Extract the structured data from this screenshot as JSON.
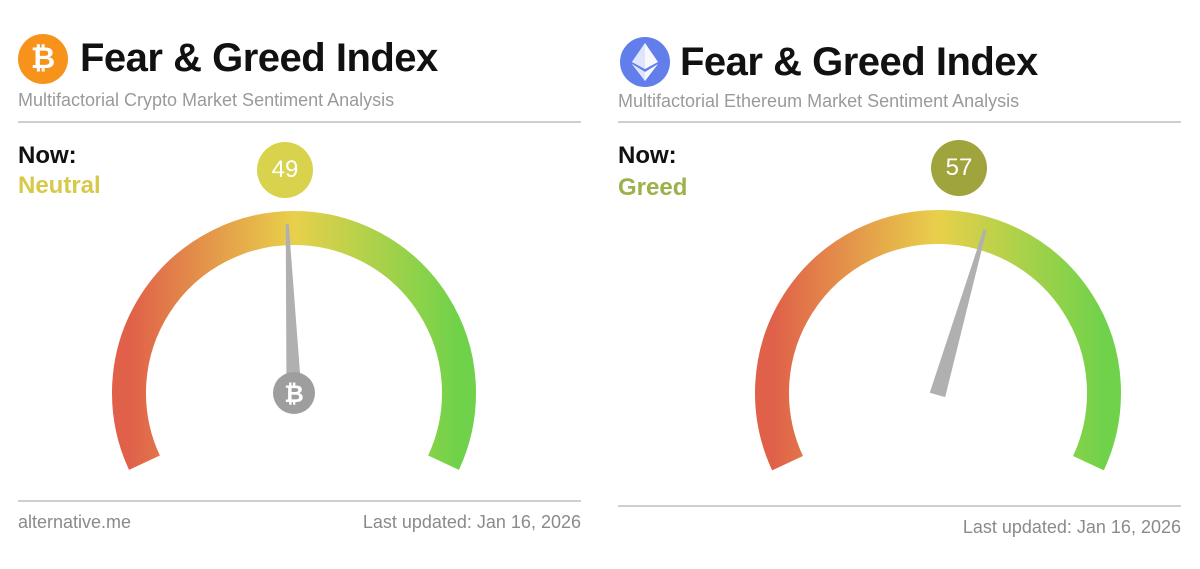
{
  "panels": {
    "btc": {
      "logo_icon": "bitcoin-icon",
      "logo_glyph": "₿",
      "title": "Fear & Greed Index",
      "subtitle": "Multifactorial Crypto Market Sentiment Analysis",
      "now_label": "Now:",
      "sentiment": "Neutral",
      "sentiment_color": "#d7c94a",
      "value": "49",
      "value_number": 49,
      "bubble_color": "#d9d24d",
      "hub_glyph": "₿",
      "footer_source": "alternative.me",
      "last_updated": "Last updated: Jan 16, 2026"
    },
    "eth": {
      "logo_icon": "ethereum-icon",
      "title": "Fear & Greed Index",
      "subtitle": "Multifactorial Ethereum Market Sentiment Analysis",
      "now_label": "Now:",
      "sentiment": "Greed",
      "sentiment_color": "#9bb24a",
      "value": "57",
      "value_number": 57,
      "bubble_color": "#9fa53c",
      "last_updated": "Last updated: Jan 16, 2026"
    }
  },
  "colors": {
    "fear": "#e0604a",
    "neutral": "#e8d04a",
    "greed": "#6fd24a",
    "needle": "#b0b0b0",
    "hub": "#9e9e9e"
  }
}
